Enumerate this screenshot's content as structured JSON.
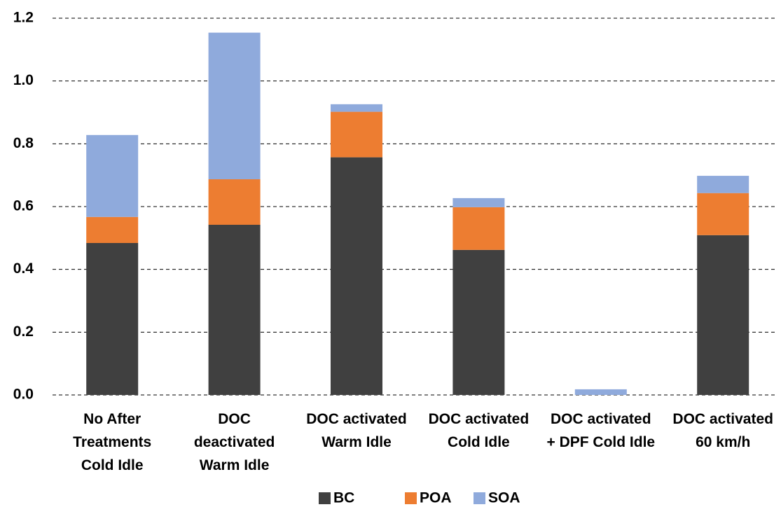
{
  "chart_data": {
    "type": "stacked_bar",
    "categories": [
      "No After\nTreatments\nCold Idle",
      "DOC\ndeactivated\nWarm Idle",
      "DOC activated\nWarm Idle",
      "DOC activated\nCold Idle",
      "DOC activated\n+ DPF Cold Idle",
      "DOC activated\n60 km/h"
    ],
    "series": [
      {
        "name": "BC",
        "color": "#404040",
        "values": [
          0.484,
          0.542,
          0.757,
          0.462,
          0,
          0.509
        ]
      },
      {
        "name": "POA",
        "color": "#ed7d31",
        "values": [
          0.083,
          0.145,
          0.145,
          0.136,
          0,
          0.134
        ]
      },
      {
        "name": "SOA",
        "color": "#8faadc",
        "values": [
          0.261,
          0.467,
          0.024,
          0.029,
          0.018,
          0.055
        ]
      }
    ],
    "ylim": [
      0,
      1.2
    ],
    "yticks": [
      {
        "value": 0,
        "label": "0.0"
      },
      0.2,
      0.4,
      0.6,
      0.8,
      {
        "value": 1,
        "label": "1.0"
      },
      1.2
    ],
    "grid": true,
    "legend": "bottom"
  }
}
